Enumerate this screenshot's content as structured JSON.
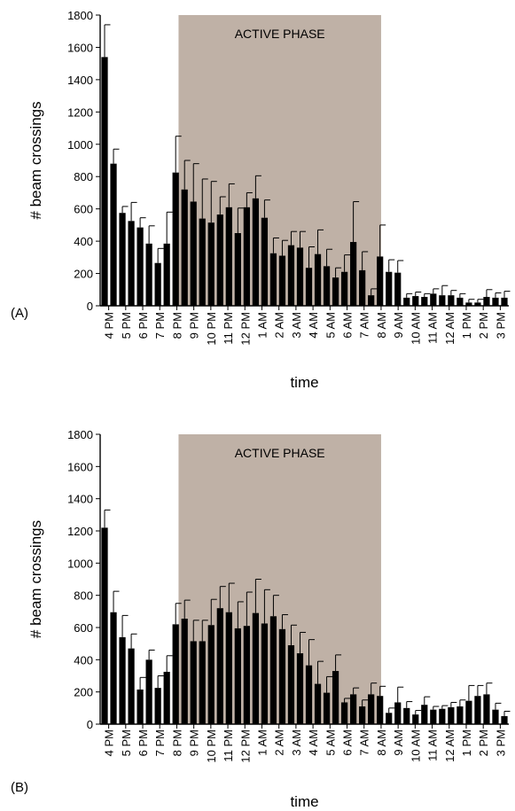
{
  "chart_data": [
    {
      "type": "bar",
      "panel_label": "(A)",
      "xlabel": "time",
      "ylabel": "# beam crossings",
      "ylim": [
        0,
        1800
      ],
      "yticks": [
        0,
        200,
        400,
        600,
        800,
        1000,
        1200,
        1400,
        1600,
        1800
      ],
      "xticks": [
        "4 PM",
        "5 PM",
        "6 PM",
        "7 PM",
        "8 PM",
        "9 PM",
        "10 PM",
        "11 PM",
        "12 PM",
        "1 AM",
        "2 AM",
        "3 AM",
        "4 AM",
        "5 AM",
        "6 AM",
        "7 AM",
        "8 AM",
        "9 AM",
        "10 AM",
        "11 AM",
        "12 AM",
        "1 PM",
        "2 PM",
        "3 PM"
      ],
      "active_phase": {
        "label": "ACTIVE PHASE",
        "start": "8 PM",
        "end": "8 AM"
      },
      "values": [
        1540,
        880,
        575,
        525,
        485,
        385,
        265,
        385,
        825,
        720,
        645,
        540,
        515,
        565,
        610,
        450,
        610,
        665,
        545,
        325,
        310,
        375,
        360,
        235,
        320,
        245,
        175,
        210,
        395,
        220,
        65,
        305,
        210,
        205,
        50,
        60,
        55,
        75,
        65,
        65,
        50,
        20,
        20,
        55,
        50,
        50
      ],
      "errors": [
        200,
        90,
        40,
        115,
        60,
        110,
        90,
        195,
        225,
        180,
        235,
        245,
        255,
        110,
        145,
        155,
        90,
        140,
        110,
        95,
        95,
        85,
        100,
        130,
        150,
        105,
        60,
        105,
        250,
        115,
        40,
        195,
        75,
        75,
        25,
        25,
        20,
        30,
        60,
        30,
        25,
        20,
        20,
        45,
        30,
        40
      ]
    },
    {
      "type": "bar",
      "panel_label": "(B)",
      "xlabel": "time",
      "ylabel": "# beam crossings",
      "ylim": [
        0,
        1800
      ],
      "yticks": [
        0,
        200,
        400,
        600,
        800,
        1000,
        1200,
        1400,
        1600,
        1800
      ],
      "xticks": [
        "4 PM",
        "5 PM",
        "6 PM",
        "7 PM",
        "8 PM",
        "9 PM",
        "10 PM",
        "11 PM",
        "12 PM",
        "1 AM",
        "2 AM",
        "3 AM",
        "4 AM",
        "5 AM",
        "6 AM",
        "7 AM",
        "8 AM",
        "9 AM",
        "10 AM",
        "11 AM",
        "12 AM",
        "1 PM",
        "2 PM",
        "3 PM"
      ],
      "active_phase": {
        "label": "ACTIVE PHASE",
        "start": "8 PM",
        "end": "8 AM"
      },
      "values": [
        1220,
        695,
        540,
        470,
        215,
        400,
        225,
        325,
        620,
        655,
        515,
        515,
        615,
        720,
        695,
        595,
        610,
        690,
        625,
        670,
        590,
        490,
        440,
        365,
        250,
        195,
        330,
        135,
        185,
        110,
        185,
        175,
        70,
        135,
        100,
        60,
        120,
        90,
        95,
        105,
        110,
        145,
        175,
        185,
        90,
        50
      ],
      "errors": [
        110,
        130,
        135,
        90,
        75,
        60,
        75,
        100,
        130,
        115,
        130,
        130,
        160,
        135,
        180,
        165,
        210,
        210,
        210,
        130,
        90,
        125,
        130,
        160,
        140,
        100,
        100,
        25,
        40,
        40,
        70,
        60,
        30,
        95,
        40,
        25,
        50,
        20,
        20,
        30,
        40,
        95,
        65,
        70,
        40,
        30
      ]
    }
  ]
}
